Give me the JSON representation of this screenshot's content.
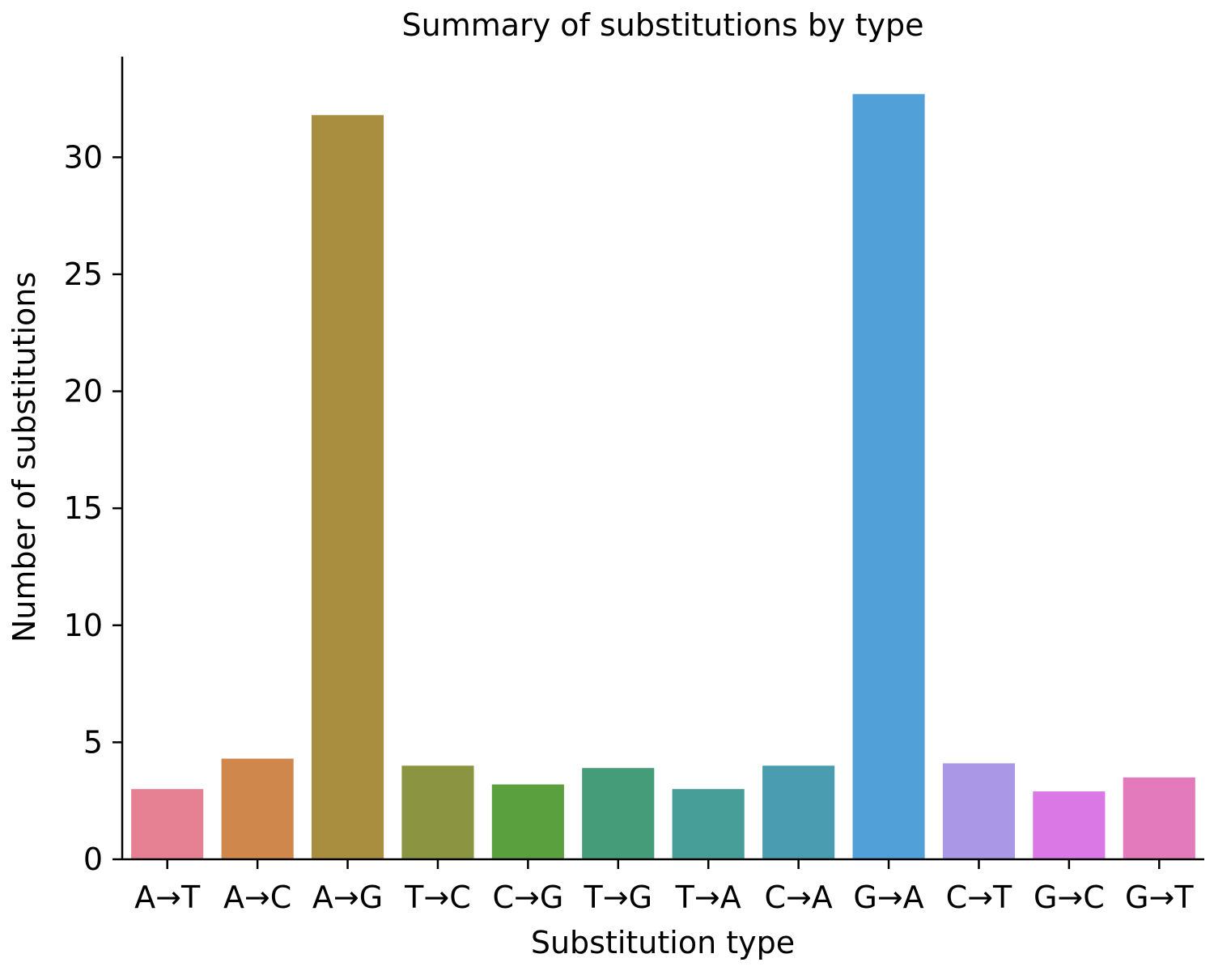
{
  "chart_data": {
    "type": "bar",
    "title": "Summary of substitutions by type",
    "xlabel": "Substitution type",
    "ylabel": "Number of substitutions",
    "categories": [
      "A→T",
      "A→C",
      "A→G",
      "T→C",
      "C→G",
      "T→G",
      "T→A",
      "C→A",
      "G→A",
      "C→T",
      "G→C",
      "G→T"
    ],
    "values": [
      3.0,
      4.3,
      31.8,
      4.0,
      3.2,
      3.9,
      3.0,
      4.0,
      32.7,
      4.1,
      2.9,
      3.5
    ],
    "colors": [
      "#e68193",
      "#d0874b",
      "#aa8e40",
      "#8b9541",
      "#5aa03f",
      "#449d78",
      "#479e98",
      "#4a9db0",
      "#52a0d8",
      "#aa97e5",
      "#da79e5",
      "#e27abc"
    ],
    "ylim": [
      0,
      34.3
    ],
    "yticks": [
      0,
      5,
      10,
      15,
      20,
      25,
      30
    ],
    "grid": false,
    "legend": "none"
  }
}
